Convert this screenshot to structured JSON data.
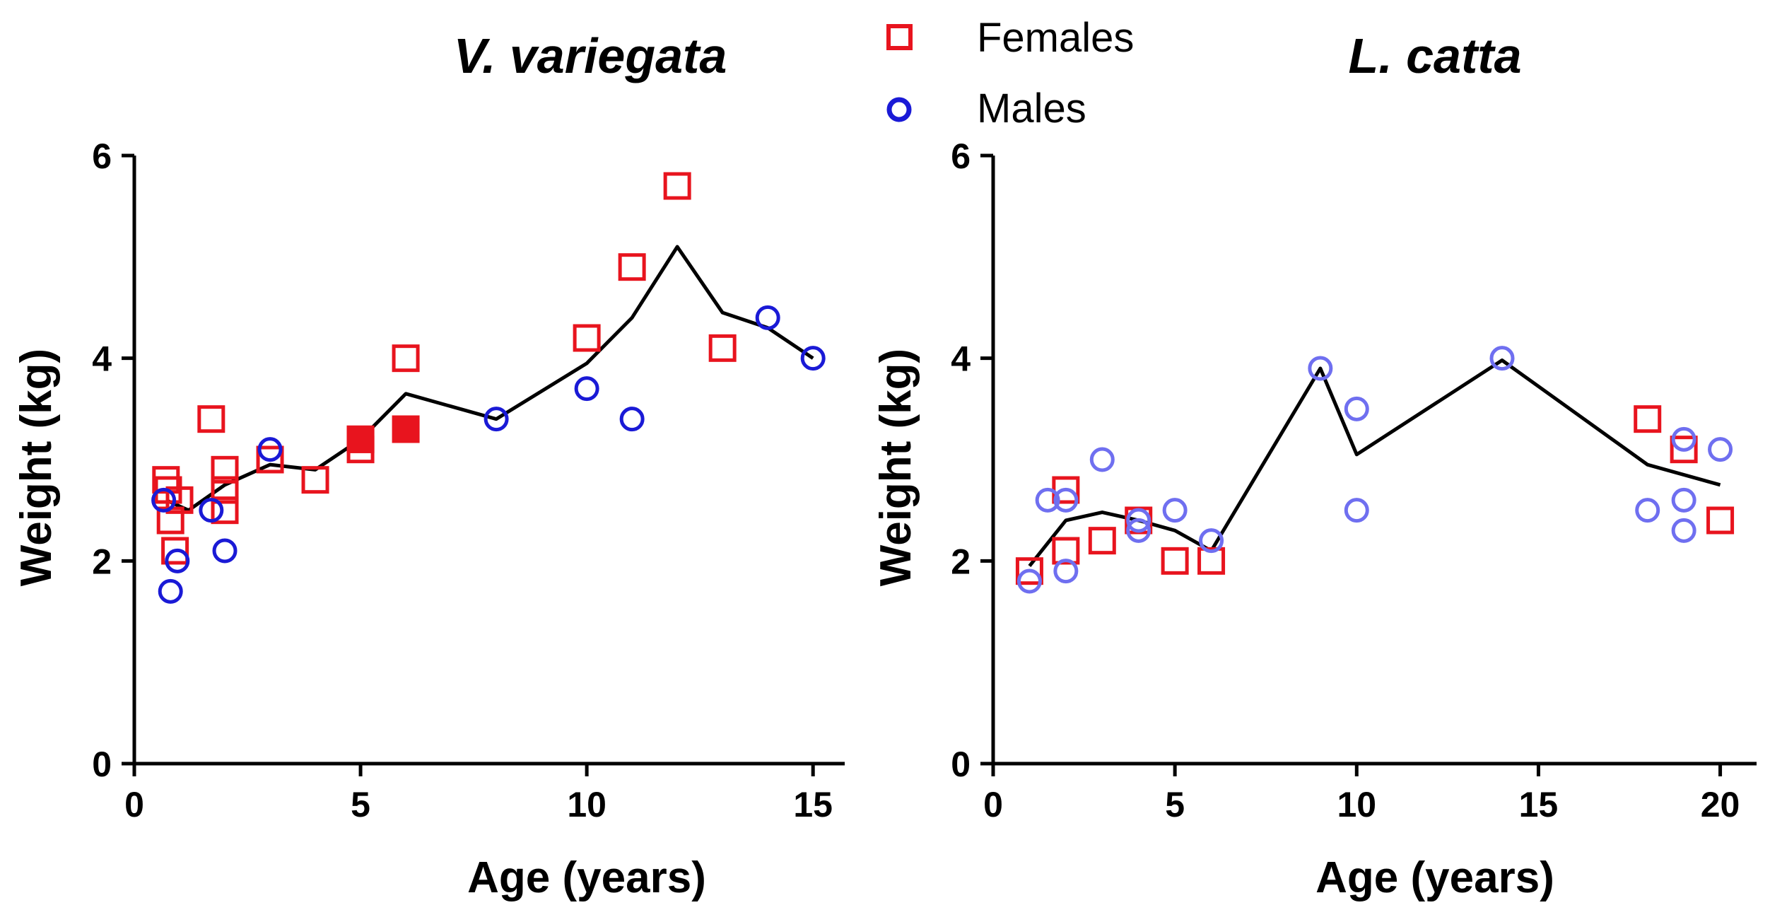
{
  "legend": {
    "females": {
      "label": "Females",
      "color": "#e8141e"
    },
    "males": {
      "label": "Males",
      "color": "#1a1ad6"
    }
  },
  "chart_data": [
    {
      "type": "scatter",
      "title": "V. variegata",
      "xlabel": "Age (years)",
      "ylabel": "Weight (kg)",
      "xlim": [
        0,
        15.7
      ],
      "ylim": [
        0,
        6
      ],
      "xticks": [
        0,
        5,
        10,
        15
      ],
      "yticks": [
        0,
        2,
        4,
        6
      ],
      "male_color": "#1a1ad6",
      "series": [
        {
          "name": "Females",
          "marker": "square-open",
          "points": [
            [
              0.7,
              2.8
            ],
            [
              0.75,
              2.7
            ],
            [
              0.8,
              2.4
            ],
            [
              0.9,
              2.1
            ],
            [
              1.0,
              2.6
            ],
            [
              1.7,
              3.4
            ],
            [
              2.0,
              2.9
            ],
            [
              2.0,
              2.7
            ],
            [
              2.0,
              2.5
            ],
            [
              3.0,
              3.0
            ],
            [
              4.0,
              2.8
            ],
            [
              5.0,
              3.1
            ],
            [
              5.0,
              3.2
            ],
            [
              6.0,
              4.0
            ],
            [
              10.0,
              4.2
            ],
            [
              11.0,
              4.9
            ],
            [
              12.0,
              5.7
            ],
            [
              13.0,
              4.1
            ]
          ]
        },
        {
          "name": "Females (filled)",
          "marker": "square-filled",
          "points": [
            [
              5.0,
              3.2
            ],
            [
              6.0,
              3.3
            ]
          ]
        },
        {
          "name": "Males",
          "marker": "circle-open",
          "points": [
            [
              0.65,
              2.6
            ],
            [
              0.8,
              1.7
            ],
            [
              0.95,
              2.0
            ],
            [
              1.7,
              2.5
            ],
            [
              2.0,
              2.1
            ],
            [
              3.0,
              3.1
            ],
            [
              8.0,
              3.4
            ],
            [
              10.0,
              3.7
            ],
            [
              11.0,
              3.4
            ],
            [
              14.0,
              4.4
            ],
            [
              15.0,
              4.0
            ]
          ]
        },
        {
          "name": "Trend",
          "marker": "line",
          "points": [
            [
              0.7,
              2.6
            ],
            [
              1.2,
              2.5
            ],
            [
              2.0,
              2.75
            ],
            [
              3.0,
              2.95
            ],
            [
              4.0,
              2.9
            ],
            [
              5.0,
              3.2
            ],
            [
              6.0,
              3.65
            ],
            [
              8.0,
              3.4
            ],
            [
              10.0,
              3.95
            ],
            [
              11.0,
              4.4
            ],
            [
              12.0,
              5.1
            ],
            [
              13.0,
              4.45
            ],
            [
              14.0,
              4.3
            ],
            [
              15.0,
              4.0
            ]
          ]
        }
      ]
    },
    {
      "type": "scatter",
      "title": "L. catta",
      "xlabel": "Age (years)",
      "ylabel": "Weight (kg)",
      "xlim": [
        0,
        21
      ],
      "ylim": [
        0,
        6
      ],
      "xticks": [
        0,
        5,
        10,
        15,
        20
      ],
      "yticks": [
        0,
        2,
        4,
        6
      ],
      "male_color": "#6f6ff0",
      "series": [
        {
          "name": "Females",
          "marker": "square-open",
          "points": [
            [
              1.0,
              1.9
            ],
            [
              2.0,
              2.7
            ],
            [
              2.0,
              2.1
            ],
            [
              3.0,
              2.2
            ],
            [
              4.0,
              2.4
            ],
            [
              5.0,
              2.0
            ],
            [
              6.0,
              2.0
            ],
            [
              18.0,
              3.4
            ],
            [
              19.0,
              3.1
            ],
            [
              20.0,
              2.4
            ]
          ]
        },
        {
          "name": "Males",
          "marker": "circle-open",
          "points": [
            [
              1.0,
              1.8
            ],
            [
              1.5,
              2.6
            ],
            [
              2.0,
              2.6
            ],
            [
              2.0,
              1.9
            ],
            [
              3.0,
              3.0
            ],
            [
              4.0,
              2.4
            ],
            [
              4.0,
              2.3
            ],
            [
              5.0,
              2.5
            ],
            [
              6.0,
              2.2
            ],
            [
              9.0,
              3.9
            ],
            [
              10.0,
              3.5
            ],
            [
              10.0,
              2.5
            ],
            [
              14.0,
              4.0
            ],
            [
              18.0,
              2.5
            ],
            [
              19.0,
              3.2
            ],
            [
              19.0,
              2.6
            ],
            [
              19.0,
              2.3
            ],
            [
              20.0,
              3.1
            ]
          ]
        },
        {
          "name": "Trend",
          "marker": "line",
          "points": [
            [
              1.0,
              1.95
            ],
            [
              2.0,
              2.4
            ],
            [
              3.0,
              2.48
            ],
            [
              4.0,
              2.4
            ],
            [
              5.0,
              2.3
            ],
            [
              6.0,
              2.1
            ],
            [
              9.0,
              3.9
            ],
            [
              10.0,
              3.05
            ],
            [
              14.0,
              3.98
            ],
            [
              18.0,
              2.95
            ],
            [
              20.0,
              2.75
            ]
          ]
        }
      ]
    }
  ]
}
